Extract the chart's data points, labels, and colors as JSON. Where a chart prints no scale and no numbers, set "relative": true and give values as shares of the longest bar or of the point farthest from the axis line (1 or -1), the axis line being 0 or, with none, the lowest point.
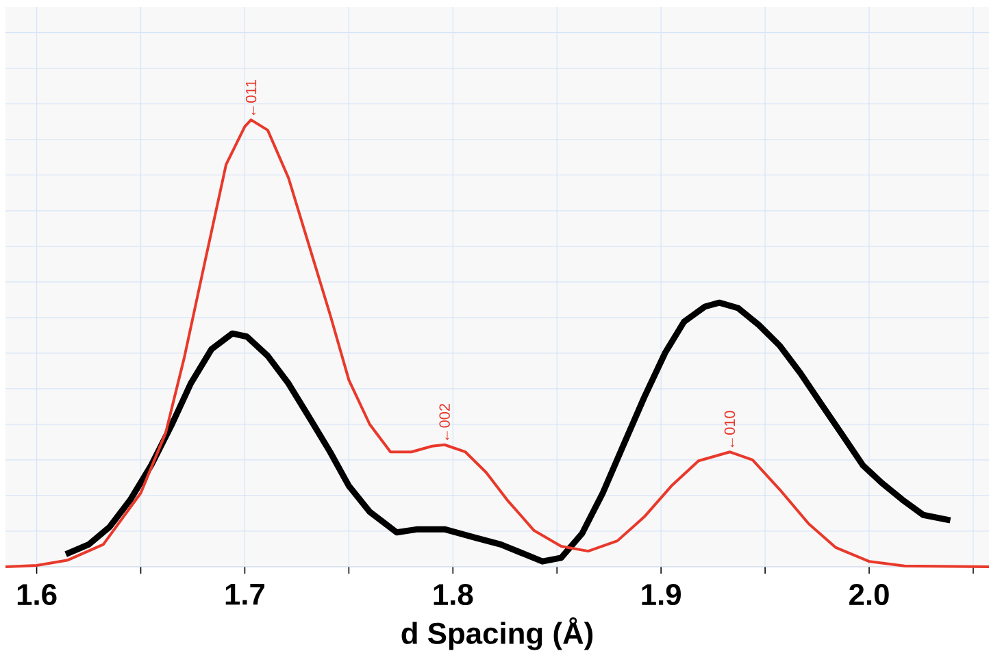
{
  "chart_data": {
    "type": "line",
    "relative": true,
    "xlabel": "d Spacing (Å)",
    "xlim": [
      1.585,
      2.0576
    ],
    "xticks": [
      1.6,
      {
        "value": 1.65,
        "label": null
      },
      1.7,
      {
        "value": 1.75,
        "label": null
      },
      1.8,
      {
        "value": 1.85,
        "label": null
      },
      1.9,
      {
        "value": 1.95,
        "label": null
      },
      {
        "value": 2.0,
        "label": "2.0"
      },
      {
        "value": 2.05,
        "label": null
      }
    ],
    "grid": true,
    "marker": "none",
    "line_style": "solid",
    "series": [
      {
        "color": "#000000",
        "x": [
          1.614,
          1.625,
          1.635,
          1.645,
          1.655,
          1.665,
          1.674,
          1.684,
          1.694,
          1.701,
          1.711,
          1.721,
          1.731,
          1.741,
          1.75,
          1.76,
          1.773,
          1.783,
          1.796,
          1.81,
          1.823,
          1.833,
          1.843,
          1.852,
          1.862,
          1.872,
          1.882,
          1.892,
          1.902,
          1.911,
          1.921,
          1.928,
          1.937,
          1.947,
          1.957,
          1.967,
          1.977,
          1.987,
          1.997,
          2.006,
          2.016,
          2.026,
          2.039
        ],
        "values": [
          0.028,
          0.05,
          0.089,
          0.15,
          0.227,
          0.319,
          0.41,
          0.487,
          0.522,
          0.515,
          0.472,
          0.41,
          0.334,
          0.257,
          0.181,
          0.123,
          0.077,
          0.084,
          0.084,
          0.066,
          0.05,
          0.031,
          0.012,
          0.02,
          0.074,
          0.165,
          0.273,
          0.38,
          0.479,
          0.548,
          0.582,
          0.591,
          0.579,
          0.541,
          0.495,
          0.433,
          0.364,
          0.296,
          0.227,
          0.188,
          0.15,
          0.116,
          0.104
        ]
      },
      {
        "color": "#e8392b",
        "x": [
          1.585,
          1.6,
          1.615,
          1.632,
          1.65,
          1.662,
          1.671,
          1.681,
          1.691,
          1.7,
          1.703,
          1.711,
          1.721,
          1.731,
          1.741,
          1.75,
          1.76,
          1.77,
          1.78,
          1.79,
          1.796,
          1.806,
          1.816,
          1.826,
          1.839,
          1.852,
          1.865,
          1.879,
          1.892,
          1.905,
          1.918,
          1.933,
          1.944,
          1.957,
          1.971,
          1.984,
          2.0,
          2.017,
          2.0576
        ],
        "values": [
          0,
          0.003,
          0.015,
          0.05,
          0.165,
          0.3,
          0.47,
          0.686,
          0.9,
          0.985,
          1.0,
          0.977,
          0.87,
          0.717,
          0.564,
          0.418,
          0.319,
          0.257,
          0.257,
          0.27,
          0.273,
          0.257,
          0.211,
          0.15,
          0.081,
          0.046,
          0.035,
          0.058,
          0.112,
          0.181,
          0.237,
          0.257,
          0.239,
          0.173,
          0.096,
          0.043,
          0.012,
          0.002,
          0
        ]
      }
    ],
    "annotations": [
      {
        "text": "←011",
        "x": 1.703,
        "y": 1.0
      },
      {
        "text": "←002",
        "x": 1.796,
        "y": 0.273
      },
      {
        "text": "←010",
        "x": 1.933,
        "y": 0.257
      }
    ]
  }
}
